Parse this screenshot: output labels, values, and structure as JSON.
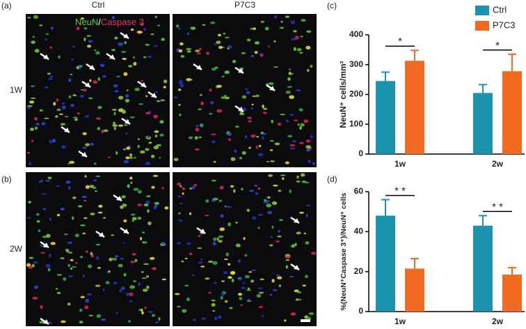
{
  "figure": {
    "panel_labels": [
      "(a)",
      "(b)",
      "(c)",
      "(d)"
    ],
    "column_labels": [
      "Ctrl",
      "P7C3"
    ],
    "row_labels": [
      "1W",
      "2W"
    ],
    "stain_labels": [
      "NeuN",
      "/",
      "Caspase 3"
    ]
  },
  "chart_data": [
    {
      "type": "bar",
      "ylabel": "NeuN⁺ cells/mm²",
      "categories": [
        "1w",
        "2w"
      ],
      "series": [
        {
          "name": "Ctrl",
          "color": "#1b93ad",
          "values": [
            245,
            205
          ],
          "errors": [
            30,
            28
          ]
        },
        {
          "name": "P7C3",
          "color": "#f26a21",
          "values": [
            313,
            278
          ],
          "errors": [
            35,
            57
          ]
        }
      ],
      "ylim": [
        0,
        400
      ],
      "yticks": [
        0,
        100,
        200,
        300,
        400
      ],
      "legend": "top-right",
      "annotations": [
        "*",
        "*"
      ]
    },
    {
      "type": "bar",
      "ylabel": "%(NeuN⁺Caspase 3⁺)/NeuN⁺ cells",
      "categories": [
        "1w",
        "2w"
      ],
      "series": [
        {
          "color": "#1b93ad",
          "values": [
            48,
            43
          ],
          "errors": [
            8,
            5
          ]
        },
        {
          "color": "#f26a21",
          "values": [
            21.5,
            18.5
          ],
          "errors": [
            5,
            3.5
          ]
        }
      ],
      "ylim": [
        0,
        60
      ],
      "yticks": [
        0,
        20,
        40,
        60
      ],
      "annotations": [
        "* *",
        "* *"
      ]
    }
  ]
}
